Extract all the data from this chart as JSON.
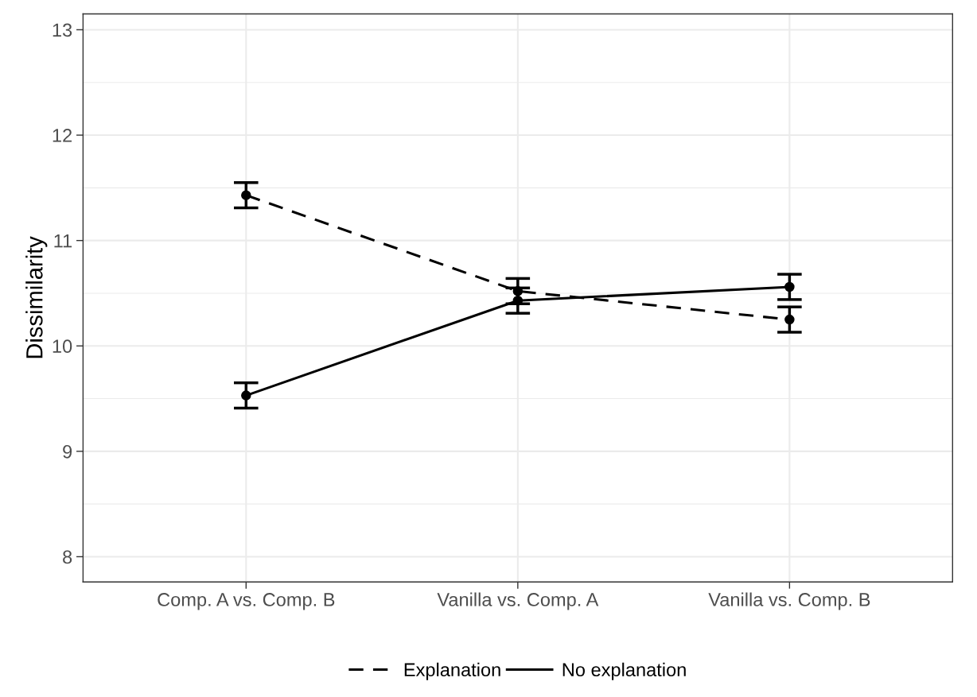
{
  "chart_data": {
    "type": "line",
    "ylabel": "Dissimilarity",
    "categories": [
      "Comp. A vs. Comp. B",
      "Vanilla vs. Comp. A",
      "Vanilla vs. Comp. B"
    ],
    "series": [
      {
        "name": "Explanation",
        "color": "#000000",
        "line_style": "dashed",
        "values": [
          11.43,
          10.52,
          10.25
        ],
        "errors": [
          0.12,
          0.12,
          0.12
        ]
      },
      {
        "name": "No explanation",
        "color": "#000000",
        "line_style": "solid",
        "values": [
          9.53,
          10.43,
          10.56
        ],
        "errors": [
          0.12,
          0.12,
          0.12
        ]
      }
    ],
    "ylim": [
      7.76,
      13.15
    ],
    "yticks": [
      8,
      {
        "value": 8.5,
        "label": null
      },
      9,
      {
        "value": 9.5,
        "label": null
      },
      10,
      {
        "value": 10.5,
        "label": null
      },
      11,
      {
        "value": 11.5,
        "label": null
      },
      12,
      {
        "value": 12.5,
        "label": null
      },
      13
    ],
    "grid": true,
    "legend": "bottom",
    "marker": "circle"
  }
}
